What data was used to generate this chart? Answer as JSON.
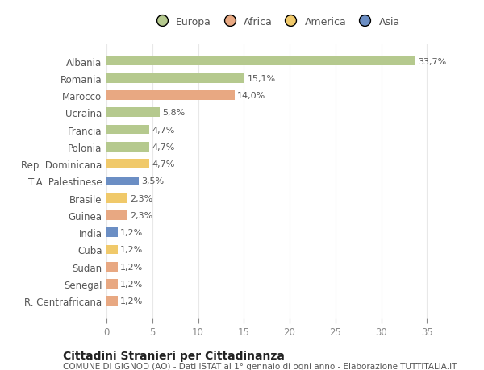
{
  "categories": [
    "Albania",
    "Romania",
    "Marocco",
    "Ucraina",
    "Francia",
    "Polonia",
    "Rep. Dominicana",
    "T.A. Palestinese",
    "Brasile",
    "Guinea",
    "India",
    "Cuba",
    "Sudan",
    "Senegal",
    "R. Centrafricana"
  ],
  "values": [
    33.7,
    15.1,
    14.0,
    5.8,
    4.7,
    4.7,
    4.7,
    3.5,
    2.3,
    2.3,
    1.2,
    1.2,
    1.2,
    1.2,
    1.2
  ],
  "labels": [
    "33,7%",
    "15,1%",
    "14,0%",
    "5,8%",
    "4,7%",
    "4,7%",
    "4,7%",
    "3,5%",
    "2,3%",
    "2,3%",
    "1,2%",
    "1,2%",
    "1,2%",
    "1,2%",
    "1,2%"
  ],
  "colors": [
    "#b5c98e",
    "#b5c98e",
    "#e8a882",
    "#b5c98e",
    "#b5c98e",
    "#b5c98e",
    "#f0c96a",
    "#6b8ec4",
    "#f0c96a",
    "#e8a882",
    "#6b8ec4",
    "#f0c96a",
    "#e8a882",
    "#e8a882",
    "#e8a882"
  ],
  "legend": [
    {
      "label": "Europa",
      "color": "#b5c98e"
    },
    {
      "label": "Africa",
      "color": "#e8a882"
    },
    {
      "label": "America",
      "color": "#f0c96a"
    },
    {
      "label": "Asia",
      "color": "#6b8ec4"
    }
  ],
  "title": "Cittadini Stranieri per Cittadinanza",
  "subtitle": "COMUNE DI GIGNOD (AO) - Dati ISTAT al 1° gennaio di ogni anno - Elaborazione TUTTITALIA.IT",
  "xlim": [
    0,
    37
  ],
  "xticks": [
    0,
    5,
    10,
    15,
    20,
    25,
    30,
    35
  ],
  "background_color": "#ffffff",
  "grid_color": "#e8e8e8",
  "bar_height": 0.55,
  "label_fontsize": 8,
  "ytick_fontsize": 8.5,
  "xtick_fontsize": 8.5,
  "legend_fontsize": 9,
  "title_fontsize": 10,
  "subtitle_fontsize": 7.5
}
